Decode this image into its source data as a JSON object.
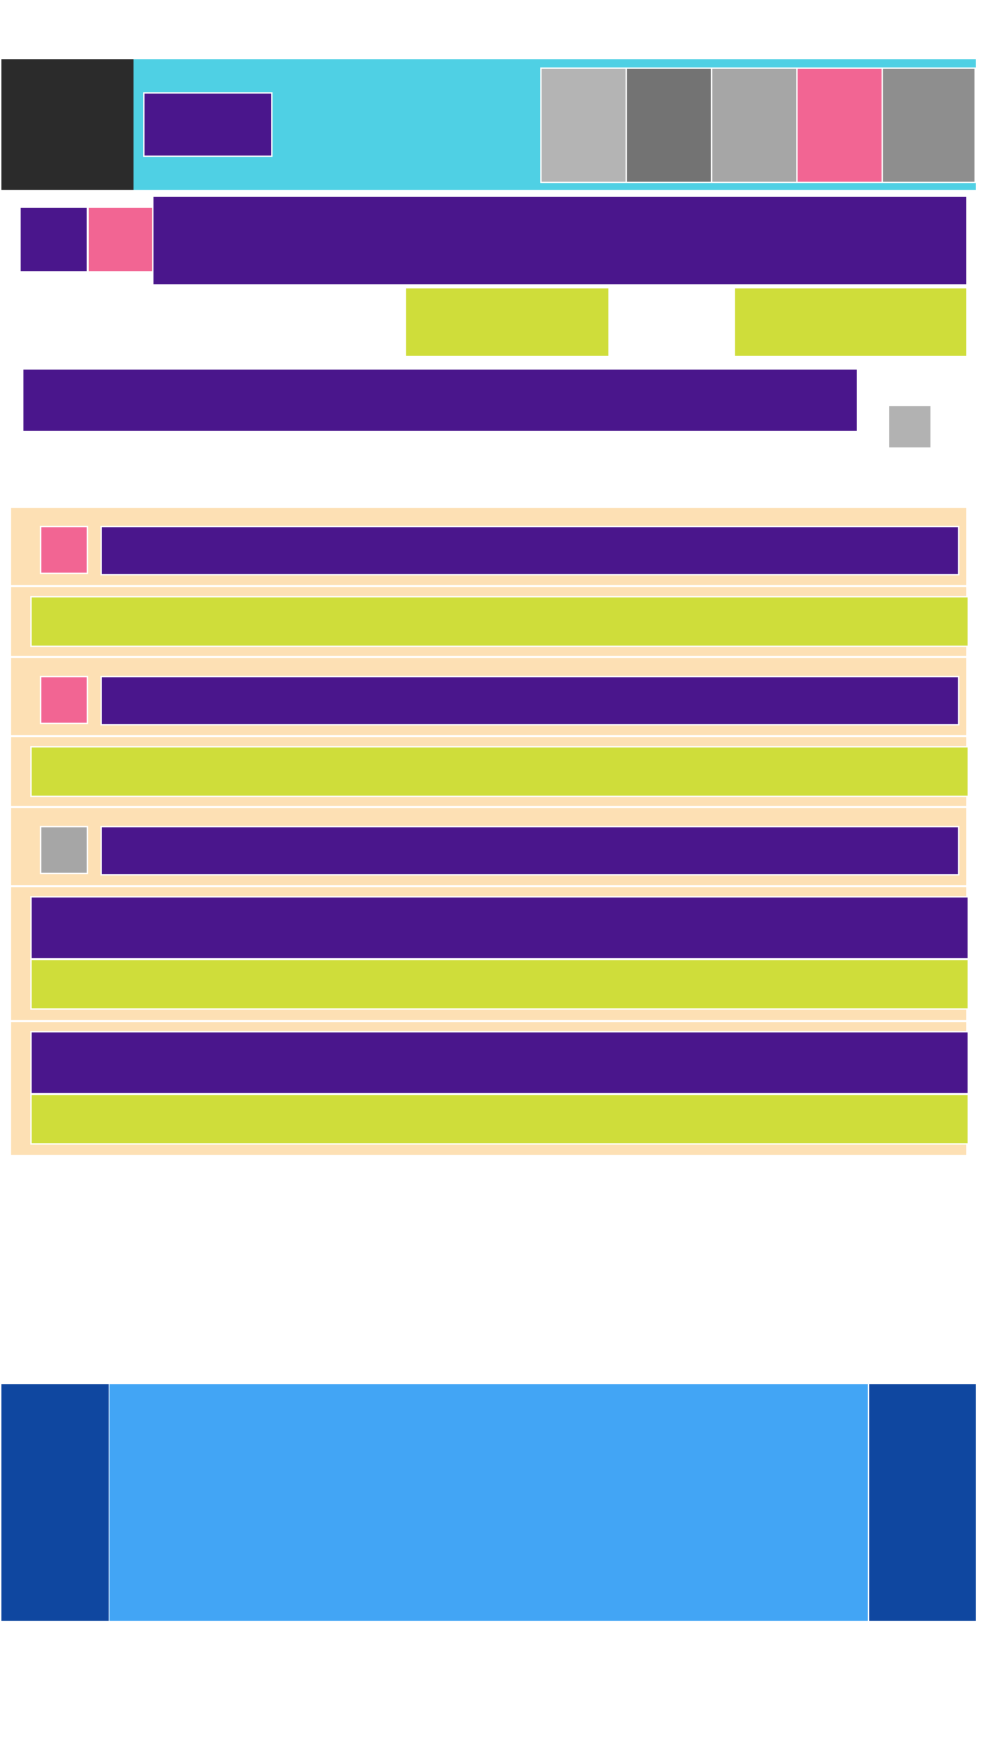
{
  "colors": {
    "header_bg": "#4fd0e4",
    "logo_bg": "#2b2b2b",
    "primary": "#4a168c",
    "accent_pink": "#f26593",
    "accent_lime": "#cfdd3a",
    "card_bg": "#fde0b4",
    "neutral_1": "#b4b4b4",
    "neutral_2": "#737373",
    "neutral_3": "#a6a6a6",
    "neutral_4": "#8e8e8e",
    "footer_dark": "#0f47a0",
    "footer_light": "#42a5f5"
  },
  "header": {
    "logo_label": "",
    "button_label": "",
    "thumbnails": [
      {
        "label": "",
        "color": "#b4b4b4"
      },
      {
        "label": "",
        "color": "#737373"
      },
      {
        "label": "",
        "color": "#a6a6a6"
      },
      {
        "label": "",
        "color": "#f26593"
      },
      {
        "label": "",
        "color": "#8e8e8e"
      }
    ]
  },
  "hero": {
    "banner_text": ""
  },
  "actions": {
    "primary_label": "",
    "secondary_label": ""
  },
  "search": {
    "placeholder": "",
    "value": ""
  },
  "feed": {
    "items": [
      {
        "title": "",
        "body": "",
        "icon_color": "#f26593"
      },
      {
        "title": "",
        "body": "",
        "icon_color": "#f26593"
      },
      {
        "title": "",
        "body": "",
        "icon_color": "#a6a6a6"
      }
    ],
    "blocks": [
      {
        "heading": "",
        "body": ""
      },
      {
        "heading": "",
        "body": ""
      }
    ]
  },
  "footer": {
    "left_label": "",
    "main_text": "",
    "right_label": ""
  }
}
